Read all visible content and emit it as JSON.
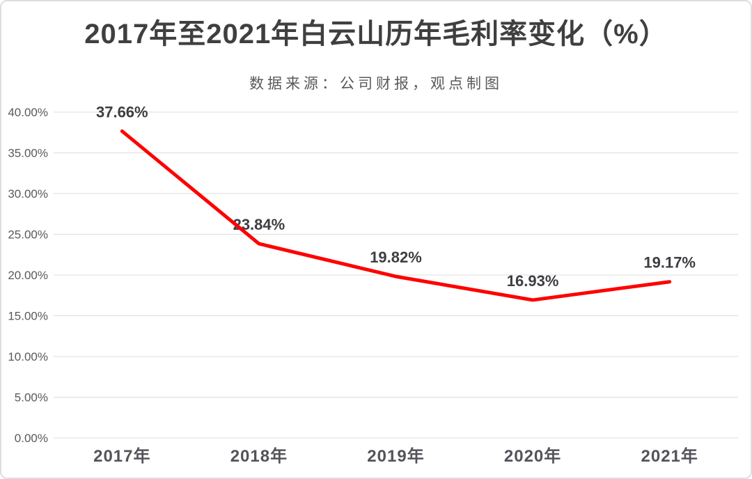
{
  "chart_data": {
    "type": "line",
    "title": "2017年至2021年白云山历年毛利率变化（%）",
    "subtitle": "数据来源：公司财报，观点制图",
    "categories": [
      "2017年",
      "2018年",
      "2019年",
      "2020年",
      "2021年"
    ],
    "values": [
      37.66,
      23.84,
      19.82,
      16.93,
      19.17
    ],
    "data_labels": [
      "37.66%",
      "23.84%",
      "19.82%",
      "16.93%",
      "19.17%"
    ],
    "ylim": [
      0,
      40
    ],
    "ytick_step": 5,
    "ytick_labels": [
      "0.00%",
      "5.00%",
      "10.00%",
      "15.00%",
      "20.00%",
      "25.00%",
      "30.00%",
      "35.00%",
      "40.00%"
    ],
    "grid": "horizontal",
    "legend_position": "none",
    "colors": {
      "line": "#fe0000",
      "grid": "#dcdcdc",
      "title": "#3f3f3f",
      "subtitle": "#595959",
      "y_tick_label": "#595959",
      "x_tick_label": "#53535a",
      "data_label": "#3d3d42",
      "card_border": "#dedede",
      "background": "#ffffff"
    }
  }
}
